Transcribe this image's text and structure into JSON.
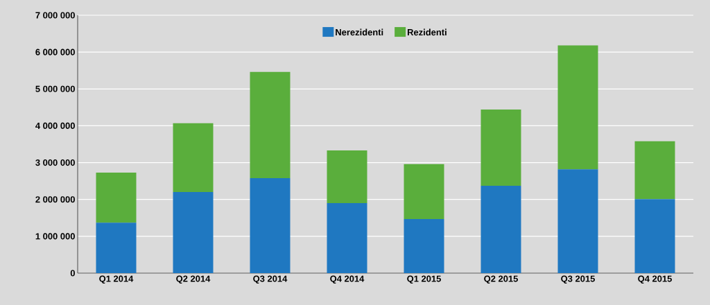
{
  "chart_data": {
    "type": "bar",
    "stacked": true,
    "categories": [
      "Q1 2014",
      "Q2 2014",
      "Q3 2014",
      "Q4 2014",
      "Q1 2015",
      "Q2 2015",
      "Q3 2015",
      "Q4 2015"
    ],
    "series": [
      {
        "name": "Nerezidenti",
        "color": "#1f78c1",
        "values": [
          1370000,
          2200000,
          2580000,
          1900000,
          1470000,
          2370000,
          2820000,
          2010000
        ]
      },
      {
        "name": "Rezidenti",
        "color": "#5aae3c",
        "values": [
          1360000,
          1870000,
          2880000,
          1430000,
          1490000,
          2070000,
          3360000,
          1570000
        ]
      }
    ],
    "ylim": [
      0,
      7000000
    ],
    "yticks": [
      {
        "value": 0,
        "label": "0"
      },
      {
        "value": 1000000,
        "label": "1 000 000"
      },
      {
        "value": 2000000,
        "label": "2 000 000"
      },
      {
        "value": 3000000,
        "label": "3 000 000"
      },
      {
        "value": 4000000,
        "label": "4 000 000"
      },
      {
        "value": 5000000,
        "label": "5 000 000"
      },
      {
        "value": 6000000,
        "label": "6 000 000"
      },
      {
        "value": 7000000,
        "label": "7 000 000"
      }
    ],
    "grid": "y",
    "legend": "top"
  }
}
